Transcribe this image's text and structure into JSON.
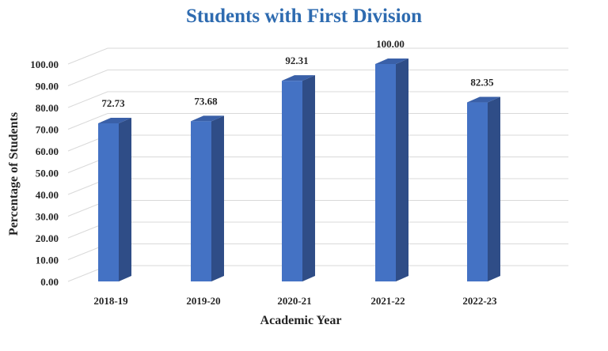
{
  "colors": {
    "title": "#2e6bb0",
    "bar_front": "#4472c4",
    "bar_side": "#2f4d87",
    "bar_top": "#3a60a8",
    "axis_title": "#2e75b6",
    "gridline": "#d9d9d9",
    "label_text": "#262626"
  },
  "chart_data": {
    "type": "bar",
    "style": "3d-column",
    "title": "Students with First Division",
    "xlabel": "Academic Year",
    "ylabel": "Percentage of Students",
    "categories": [
      "2018-19",
      "2019-20",
      "2020-21",
      "2021-22",
      "2022-23"
    ],
    "values": [
      72.73,
      73.68,
      92.31,
      100.0,
      82.35
    ],
    "value_labels": [
      "72.73",
      "73.68",
      "92.31",
      "100.00",
      "82.35"
    ],
    "ylim": [
      0,
      100
    ],
    "yticks": [
      "0.00",
      "10.00",
      "20.00",
      "30.00",
      "40.00",
      "50.00",
      "60.00",
      "70.00",
      "80.00",
      "90.00",
      "100.00"
    ],
    "grid": true,
    "legend": "none"
  }
}
